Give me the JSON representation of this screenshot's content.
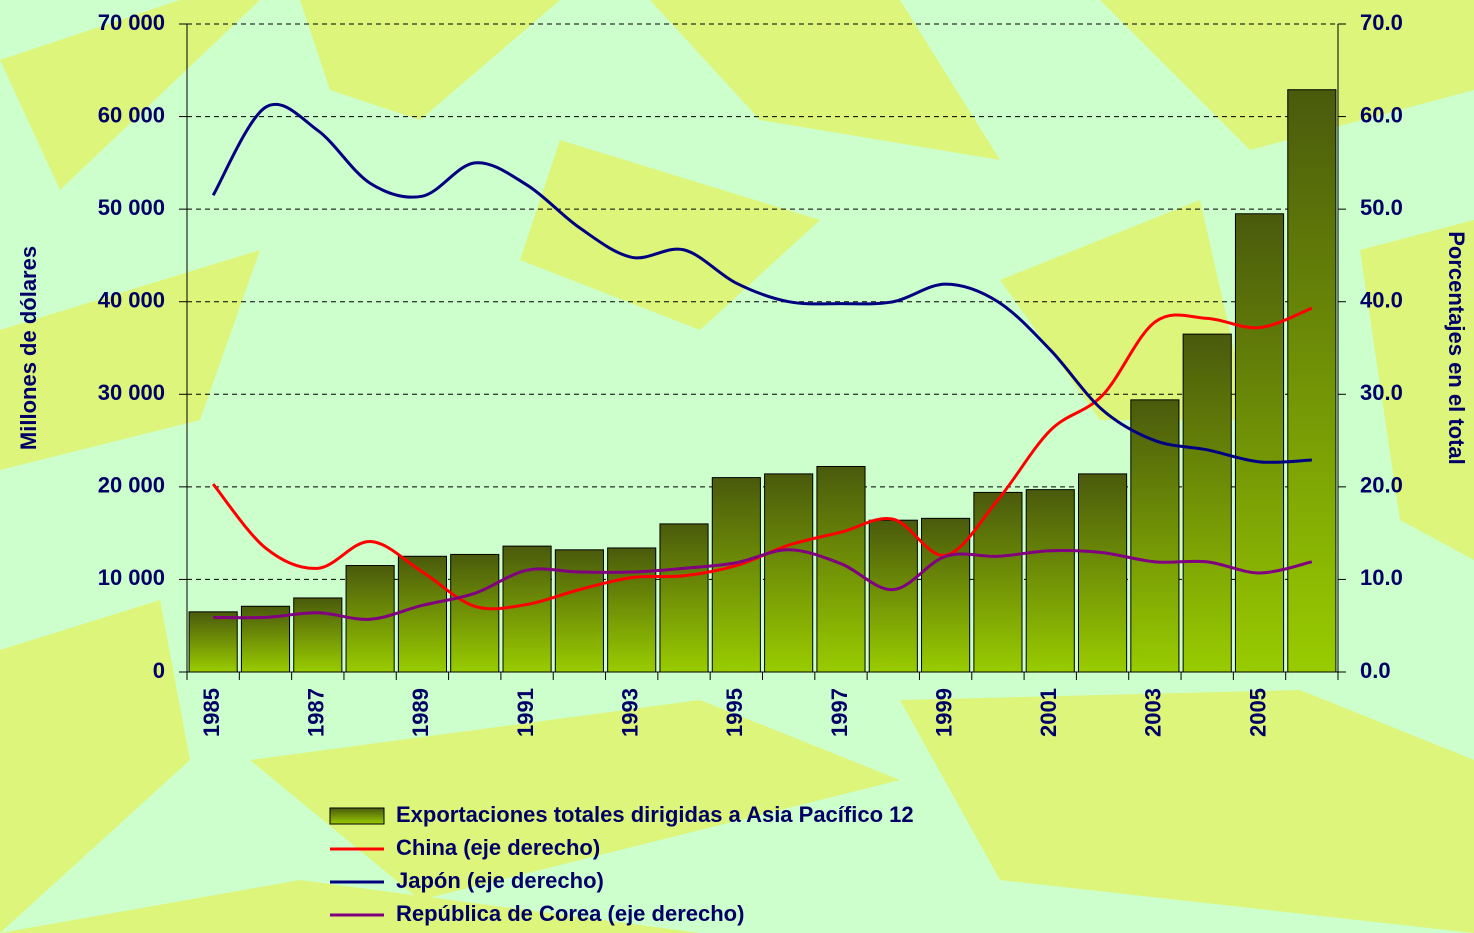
{
  "chart_data": {
    "type": "bar_line",
    "y_label": "Millones de dólares",
    "y2_label": "Porcentajes en el total",
    "categories": [
      "1985",
      null,
      "1987",
      null,
      "1989",
      null,
      "1991",
      null,
      "1993",
      null,
      "1995",
      null,
      "1997",
      null,
      "1999",
      null,
      "2001",
      null,
      "2003",
      null,
      "2005",
      null
    ],
    "series": [
      {
        "name": "Exportaciones totales dirigidas a Asia Pacífico 12",
        "type": "bar",
        "color": "#5a6e10",
        "values": [
          6500,
          7100,
          8000,
          11500,
          12500,
          12700,
          13600,
          13200,
          13400,
          16000,
          21000,
          21400,
          22200,
          16400,
          16600,
          19400,
          19700,
          21400,
          29400,
          36500,
          49500,
          62900
        ]
      },
      {
        "name": "China (eje derecho)",
        "type": "line",
        "axis": "y2",
        "color": "#ff0000",
        "values": [
          20.3,
          13.4,
          11.2,
          14.1,
          10.8,
          7.1,
          7.3,
          8.9,
          10.2,
          10.4,
          11.5,
          13.7,
          15.1,
          16.5,
          12.6,
          18.6,
          26.1,
          29.9,
          37.8,
          38.2,
          37.2,
          39.3
        ]
      },
      {
        "name": "Japón (eje derecho)",
        "type": "line",
        "axis": "y2",
        "color": "#000080",
        "values": [
          51.5,
          61.0,
          58.5,
          52.8,
          51.4,
          55.0,
          52.6,
          48.0,
          44.8,
          45.6,
          42.0,
          40.0,
          39.8,
          40.0,
          41.9,
          40.0,
          34.8,
          28.3,
          25.0,
          24.0,
          22.7,
          22.9
        ]
      },
      {
        "name": "República de Corea (eje derecho)",
        "type": "line",
        "axis": "y2",
        "color": "#800080",
        "values": [
          5.9,
          5.9,
          6.4,
          5.7,
          7.2,
          8.5,
          11.0,
          10.8,
          10.8,
          11.2,
          11.8,
          13.2,
          11.7,
          8.9,
          12.5,
          12.5,
          13.1,
          12.9,
          11.9,
          11.9,
          10.7,
          11.9
        ]
      }
    ],
    "ylim": [
      0,
      70000
    ],
    "yticks": [
      {
        "value": 0,
        "label": "0"
      },
      {
        "value": 10000,
        "label": "10 000"
      },
      {
        "value": 20000,
        "label": "20 000"
      },
      {
        "value": 30000,
        "label": "30 000"
      },
      {
        "value": 40000,
        "label": "40 000"
      },
      {
        "value": 50000,
        "label": "50 000"
      },
      {
        "value": 60000,
        "label": "60 000"
      },
      {
        "value": 70000,
        "label": "70 000"
      }
    ],
    "y2lim": [
      0,
      70
    ],
    "y2ticks": [
      {
        "value": 0,
        "label": "0.0"
      },
      {
        "value": 10,
        "label": "10.0"
      },
      {
        "value": 20,
        "label": "20.0"
      },
      {
        "value": 30,
        "label": "30.0"
      },
      {
        "value": 40,
        "label": "40.0"
      },
      {
        "value": 50,
        "label": "50.0"
      },
      {
        "value": 60,
        "label": "60.0"
      },
      {
        "value": 70,
        "label": "70.0"
      }
    ],
    "grid": true,
    "legend": "bottom"
  }
}
